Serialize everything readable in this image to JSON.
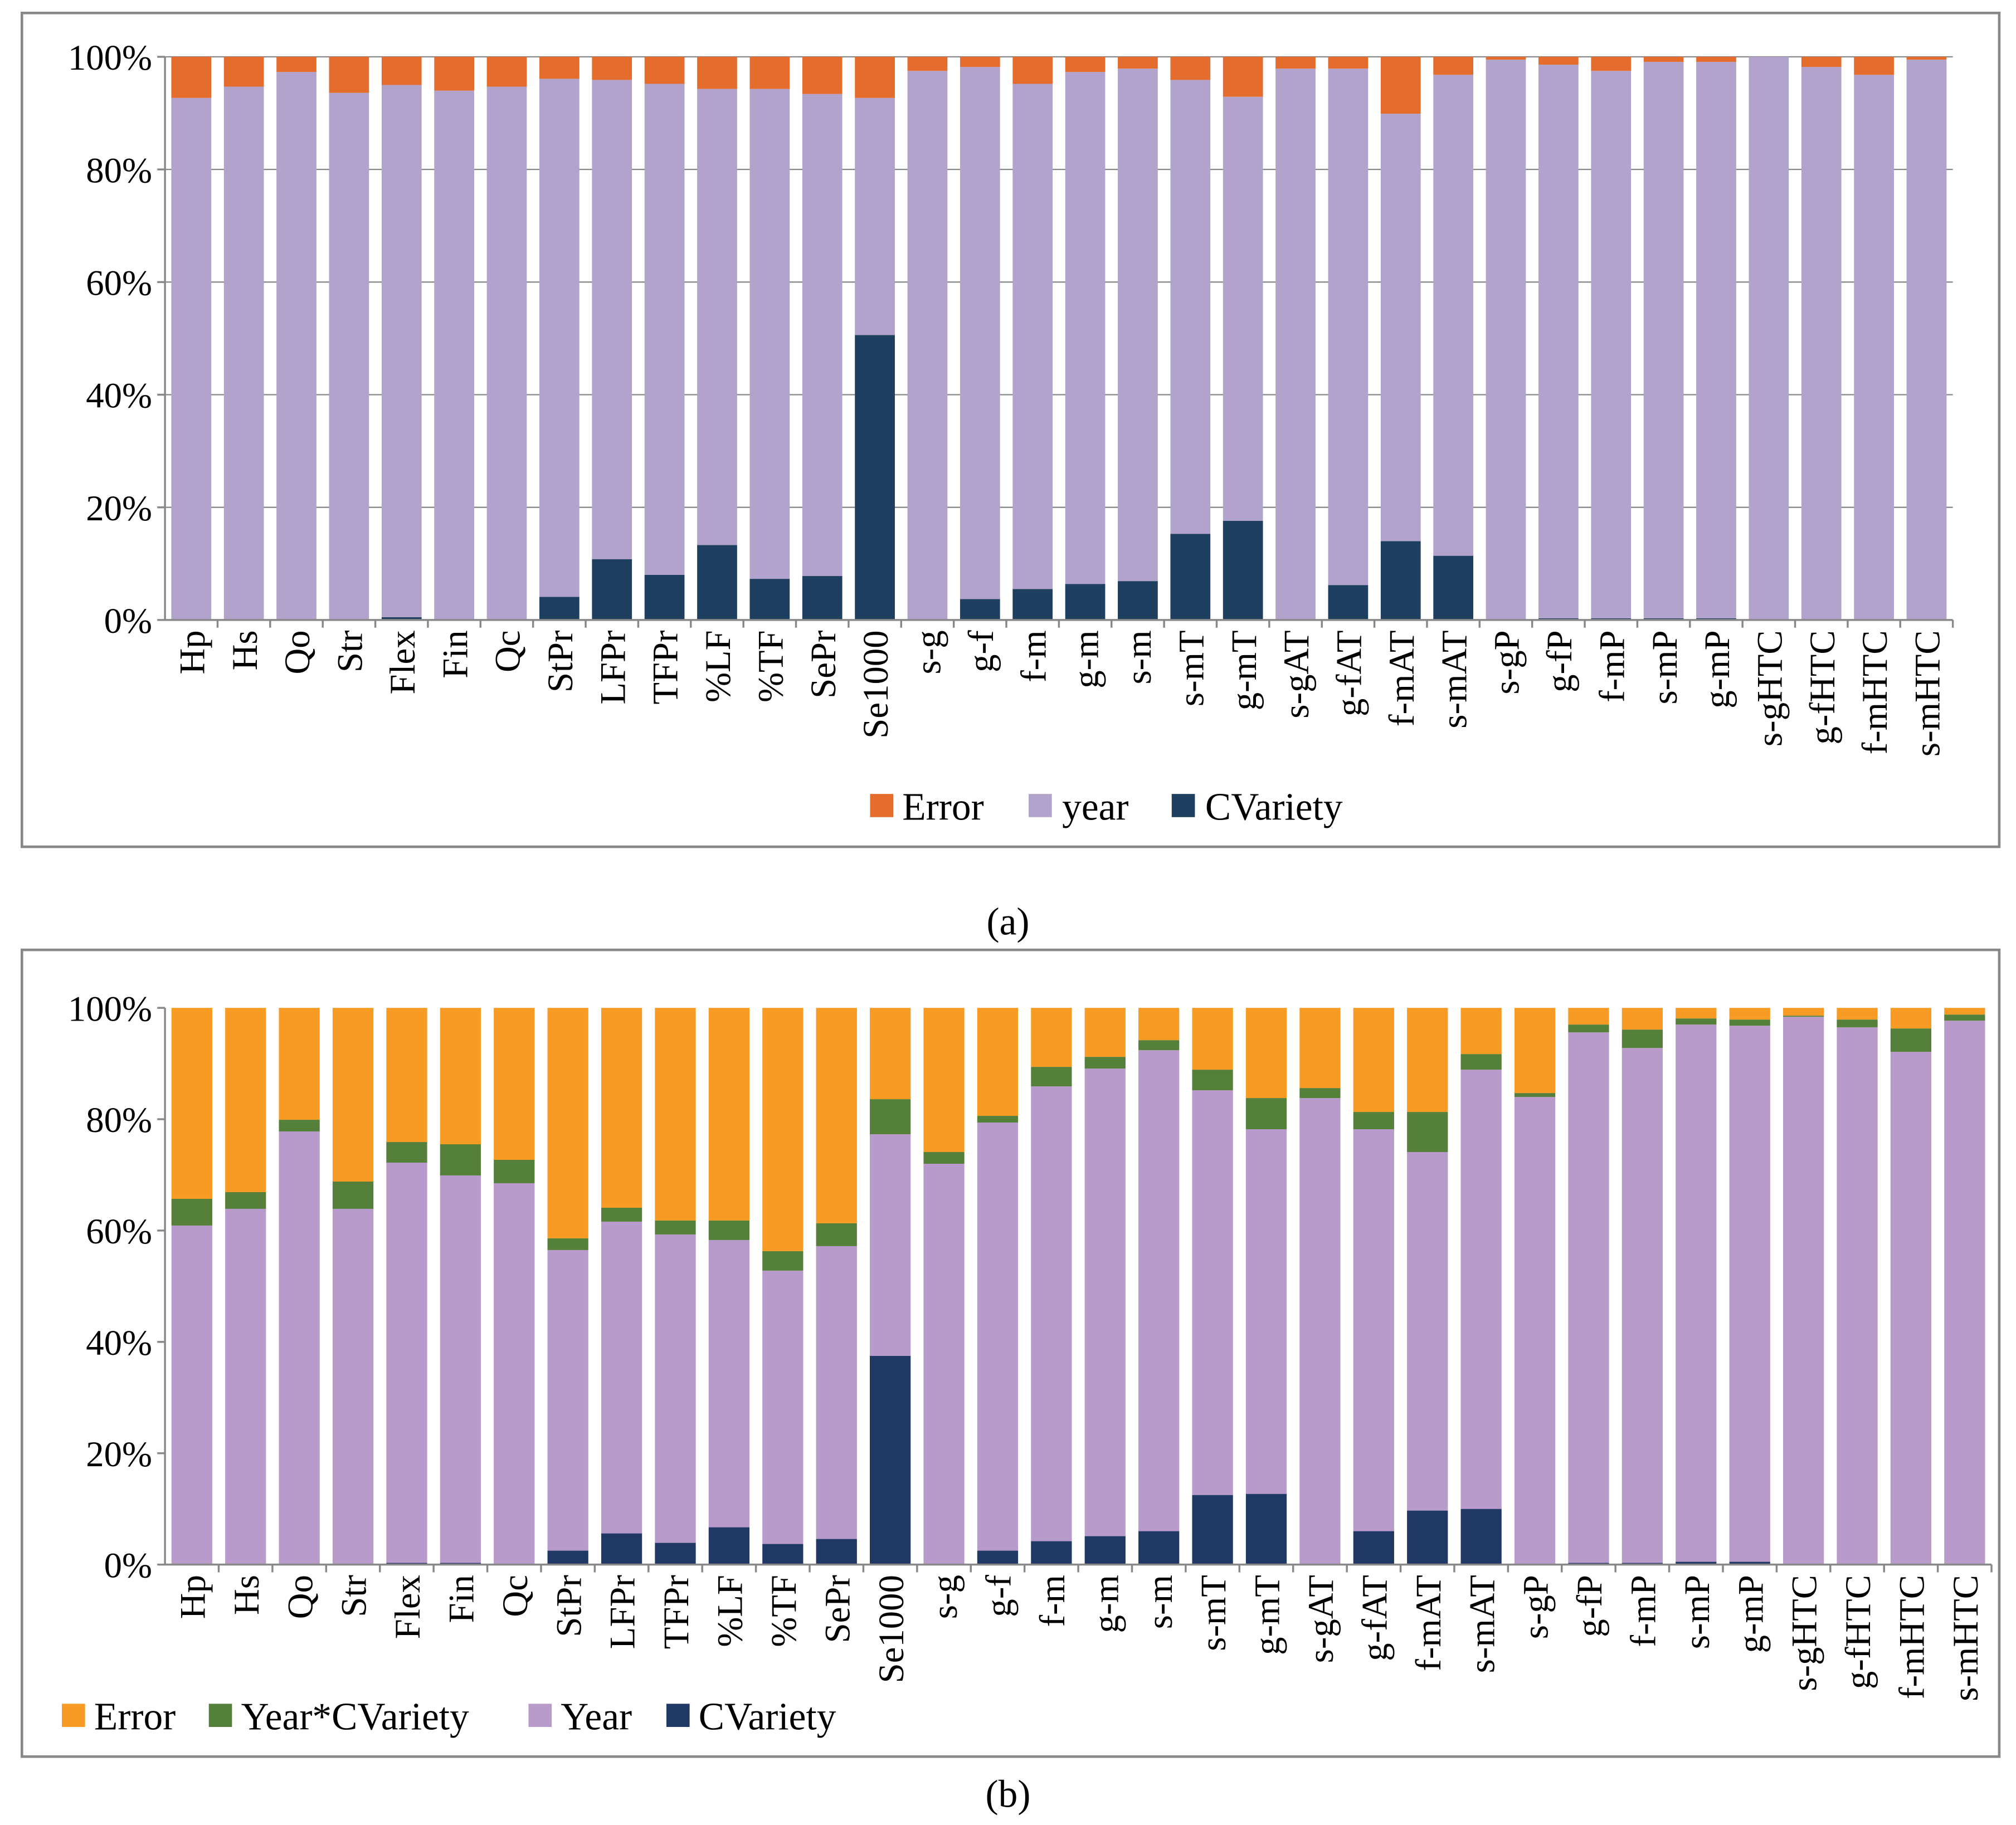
{
  "chart_data": [
    {
      "type": "bar",
      "stacked": "percent",
      "caption": "(a)",
      "ylim": [
        0,
        100
      ],
      "yticks": [
        "0%",
        "20%",
        "40%",
        "60%",
        "80%",
        "100%"
      ],
      "grid": true,
      "legend_placement": "bottom",
      "categories": [
        "Hp",
        "Hs",
        "Qo",
        "Str",
        "Flex",
        "Fin",
        "Qc",
        "StPr",
        "LFPr",
        "TFPr",
        "%LF",
        "%TF",
        "SePr",
        "Se1000",
        "s-g",
        "g-f",
        "f-m",
        "g-m",
        "s-m",
        "s-mT",
        "g-mT",
        "s-gAT",
        "g-fAT",
        "f-mAT",
        "s-mAT",
        "s-gP",
        "g-fP",
        "f-mP",
        "s-mP",
        "g-mP",
        "s-gHTC",
        "g-fHTC",
        "f-mHTC",
        "s-mHTC"
      ],
      "series": [
        {
          "name": "CVariety",
          "color": "#1F3F60",
          "values": [
            0,
            0,
            0,
            0,
            0.5,
            0,
            0,
            4.1,
            10.8,
            8.0,
            13.3,
            7.3,
            7.8,
            50.6,
            0,
            3.7,
            5.5,
            6.4,
            6.9,
            15.3,
            17.6,
            0,
            6.2,
            14.0,
            11.4,
            0,
            0.3,
            0.3,
            0.3,
            0.3,
            0,
            0,
            0,
            0
          ]
        },
        {
          "name": "year",
          "color": "#B1A3CB",
          "values": [
            92.7,
            94.7,
            97.3,
            93.6,
            94.5,
            94.0,
            94.7,
            92.0,
            85.1,
            87.2,
            81.0,
            87.0,
            85.6,
            42.1,
            97.5,
            94.5,
            89.7,
            90.9,
            91.0,
            80.6,
            75.3,
            97.9,
            91.7,
            75.9,
            85.4,
            99.5,
            98.3,
            97.2,
            98.8,
            98.8,
            100,
            98.2,
            96.8,
            99.5
          ]
        },
        {
          "name": "Error",
          "color": "#E46C2C",
          "values": [
            7.3,
            5.3,
            2.7,
            6.4,
            5.0,
            6.0,
            5.3,
            3.9,
            4.1,
            4.8,
            5.7,
            5.7,
            6.6,
            7.3,
            2.5,
            1.8,
            4.8,
            2.7,
            2.1,
            4.1,
            7.1,
            2.1,
            2.1,
            10.1,
            3.2,
            0.5,
            1.4,
            2.5,
            0.9,
            0.9,
            0,
            1.8,
            3.2,
            0.5
          ]
        }
      ],
      "legend": [
        "Error",
        "year",
        "CVariety"
      ]
    },
    {
      "type": "bar",
      "stacked": "percent",
      "caption": "(b)",
      "ylim": [
        0,
        100
      ],
      "yticks": [
        "0%",
        "20%",
        "40%",
        "60%",
        "80%",
        "100%"
      ],
      "grid": false,
      "legend_placement": "bottom-left",
      "categories": [
        "Hp",
        "Hs",
        "Qo",
        "Str",
        "Flex",
        "Fin",
        "Qc",
        "StPr",
        "LFPr",
        "TFPr",
        "%LF",
        "%TF",
        "SePr",
        "Se1000",
        "s-g",
        "g-f",
        "f-m",
        "g-m",
        "s-m",
        "s-mT",
        "g-mT",
        "s-gAT",
        "g-fAT",
        "f-mAT",
        "s-mAT",
        "s-gP",
        "g-fP",
        "f-mP",
        "s-mP",
        "g-mP",
        "s-gHTC",
        "g-fHTC",
        "f-mHTC",
        "s-mHTC"
      ],
      "series": [
        {
          "name": "CVariety",
          "color": "#1F3864",
          "values": [
            0,
            0,
            0,
            0,
            0.3,
            0.3,
            0,
            2.5,
            5.6,
            3.9,
            6.7,
            3.7,
            4.6,
            37.5,
            0,
            2.5,
            4.2,
            5.1,
            6.0,
            12.5,
            12.7,
            0,
            6.0,
            9.7,
            10.0,
            0,
            0.3,
            0.3,
            0.5,
            0.5,
            0,
            0,
            0,
            0
          ]
        },
        {
          "name": "Year",
          "color": "#B89ACB",
          "values": [
            60.9,
            63.9,
            77.8,
            63.9,
            71.9,
            69.6,
            68.5,
            54.0,
            56.0,
            55.4,
            51.6,
            49.1,
            52.6,
            39.8,
            72.0,
            76.9,
            81.7,
            84.0,
            86.4,
            72.7,
            65.5,
            83.8,
            72.2,
            64.4,
            78.9,
            84.0,
            95.3,
            92.5,
            96.5,
            96.3,
            98.4,
            96.5,
            92.1,
            97.7
          ]
        },
        {
          "name": "Year*CVariety",
          "color": "#55803A",
          "values": [
            4.8,
            3.0,
            2.1,
            4.9,
            3.7,
            5.6,
            4.2,
            2.1,
            2.5,
            2.5,
            3.5,
            3.5,
            4.1,
            6.3,
            2.1,
            1.2,
            3.5,
            2.1,
            1.8,
            3.7,
            5.6,
            1.8,
            3.1,
            7.2,
            2.8,
            0.7,
            1.4,
            3.3,
            1.1,
            1.1,
            0.2,
            1.4,
            4.2,
            1.1
          ]
        },
        {
          "name": "Error",
          "color": "#F79B24",
          "values": [
            34.3,
            33.1,
            20.1,
            31.2,
            24.1,
            24.5,
            27.3,
            41.4,
            35.9,
            38.2,
            38.2,
            43.7,
            38.7,
            16.4,
            25.9,
            19.4,
            10.6,
            8.8,
            5.8,
            11.1,
            16.2,
            14.4,
            18.7,
            18.7,
            8.3,
            15.3,
            3.0,
            3.9,
            1.9,
            2.1,
            1.4,
            2.1,
            3.7,
            1.2
          ]
        }
      ],
      "legend": [
        "Error",
        "Year*CVariety",
        "Year",
        "CVariety"
      ]
    }
  ]
}
